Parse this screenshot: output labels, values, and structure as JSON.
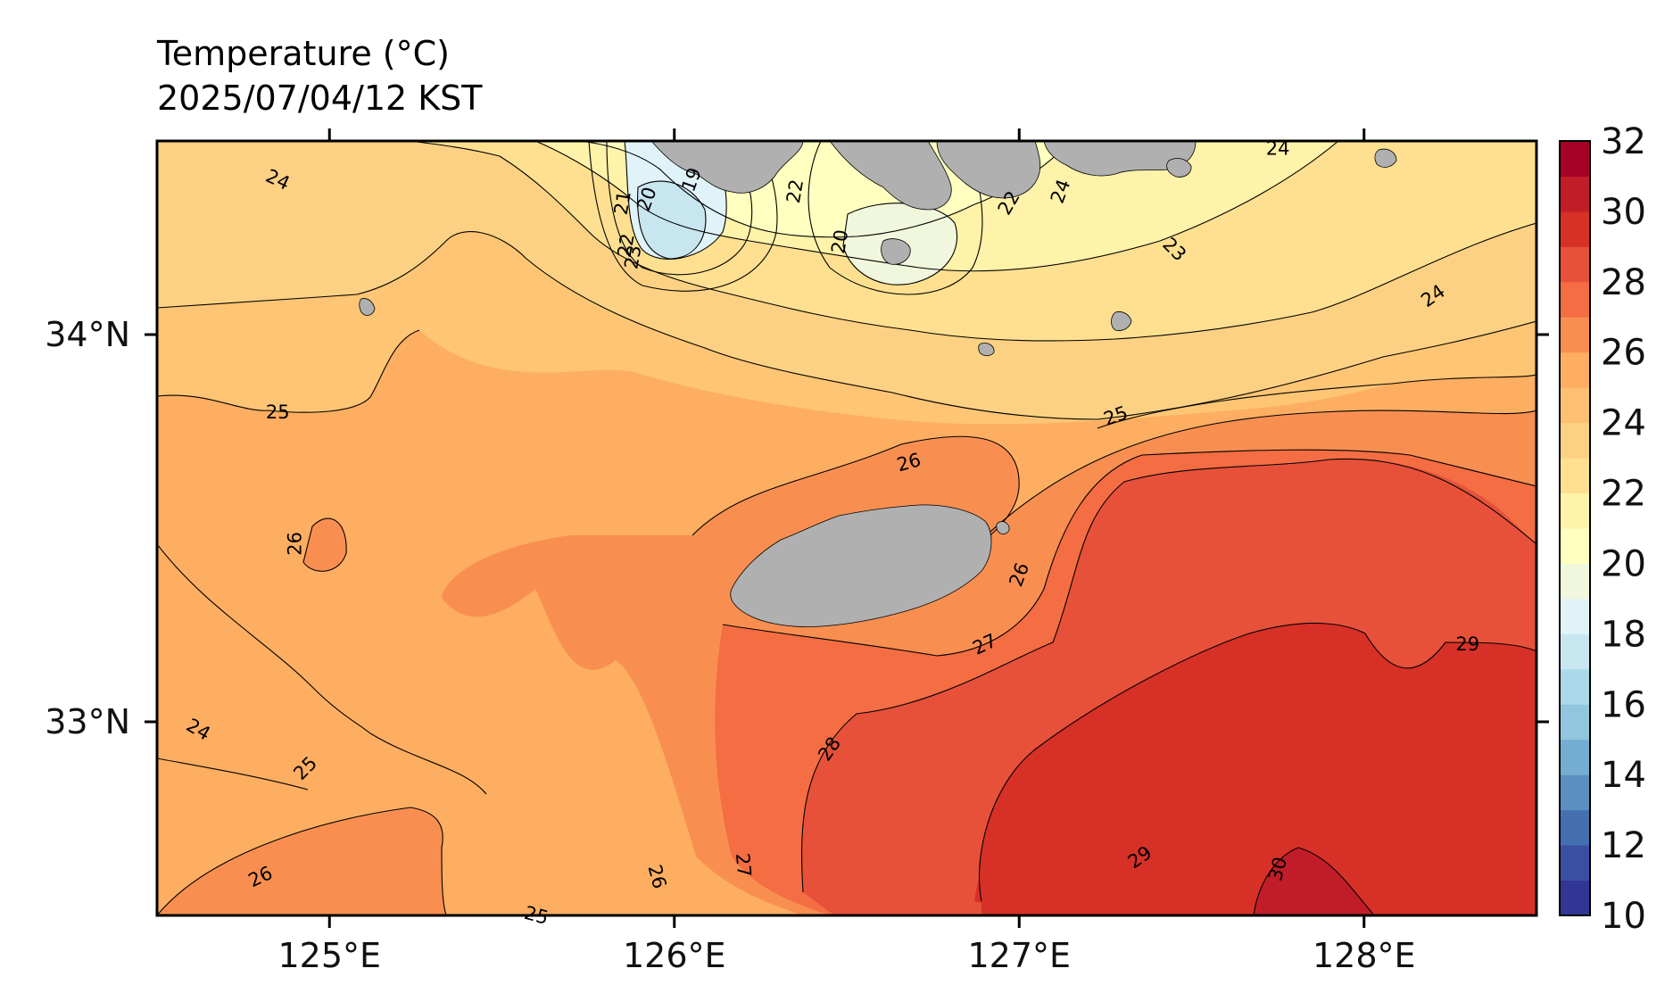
{
  "title": {
    "variable": "Temperature (°C)",
    "time": "2025/07/04/12 KST"
  },
  "colors": {
    "land": "#b0b0b0",
    "background_sea": "#fdc574",
    "colormap": [
      "#313695",
      "#3a4fa2",
      "#4470b1",
      "#5b8fc2",
      "#74add1",
      "#92c5de",
      "#abd9e9",
      "#c8e6f0",
      "#e0f3f8",
      "#f0f7dc",
      "#ffffbf",
      "#fff2a9",
      "#fee090",
      "#fdd183",
      "#fdbf71",
      "#fdae61",
      "#f88f51",
      "#f46d43",
      "#e7513a",
      "#d73027",
      "#c11d29",
      "#a50026"
    ]
  },
  "map": {
    "lon_range": [
      124.5,
      128.5
    ],
    "lat_range": [
      32.5,
      34.5
    ],
    "lon_ticks": [
      125,
      126,
      127,
      128
    ],
    "lat_ticks": [
      33,
      34
    ],
    "lon_tick_labels": [
      "125°E",
      "126°E",
      "127°E",
      "128°E"
    ],
    "lat_tick_labels": [
      "33°N",
      "34°N"
    ]
  },
  "colorbar": {
    "range": [
      10,
      32
    ],
    "tick_labels": [
      "10",
      "12",
      "14",
      "16",
      "18",
      "20",
      "22",
      "24",
      "26",
      "28",
      "30",
      "32"
    ]
  },
  "contour_labels": [
    {
      "text": "24",
      "lon": 124.85,
      "lat": 34.4,
      "angle": 25
    },
    {
      "text": "24",
      "lon": 127.75,
      "lat": 34.48,
      "angle": 0
    },
    {
      "text": "24",
      "lon": 128.2,
      "lat": 34.1,
      "angle": -35
    },
    {
      "text": "24",
      "lon": 124.62,
      "lat": 32.98,
      "angle": 30
    },
    {
      "text": "25",
      "lon": 124.85,
      "lat": 33.8,
      "angle": 0
    },
    {
      "text": "25",
      "lon": 127.28,
      "lat": 33.79,
      "angle": -20
    },
    {
      "text": "25",
      "lon": 124.93,
      "lat": 32.88,
      "angle": -45
    },
    {
      "text": "25",
      "lon": 125.6,
      "lat": 32.5,
      "angle": 15
    },
    {
      "text": "26",
      "lon": 126.68,
      "lat": 33.67,
      "angle": -15
    },
    {
      "text": "26",
      "lon": 124.9,
      "lat": 33.46,
      "angle": -90
    },
    {
      "text": "26",
      "lon": 127.0,
      "lat": 33.38,
      "angle": -70
    },
    {
      "text": "26",
      "lon": 124.8,
      "lat": 32.6,
      "angle": -25
    },
    {
      "text": "26",
      "lon": 125.95,
      "lat": 32.6,
      "angle": 75
    },
    {
      "text": "27",
      "lon": 126.9,
      "lat": 33.2,
      "angle": -25
    },
    {
      "text": "27",
      "lon": 126.2,
      "lat": 32.63,
      "angle": 85
    },
    {
      "text": "28",
      "lon": 126.45,
      "lat": 32.93,
      "angle": -55
    },
    {
      "text": "29",
      "lon": 128.3,
      "lat": 33.2,
      "angle": 0
    },
    {
      "text": "29",
      "lon": 127.35,
      "lat": 32.65,
      "angle": -35
    },
    {
      "text": "30",
      "lon": 127.75,
      "lat": 32.62,
      "angle": -75
    },
    {
      "text": "19",
      "lon": 126.05,
      "lat": 34.4,
      "angle": -70
    },
    {
      "text": "20",
      "lon": 125.92,
      "lat": 34.35,
      "angle": -70
    },
    {
      "text": "21",
      "lon": 125.85,
      "lat": 34.34,
      "angle": -80
    },
    {
      "text": "22",
      "lon": 125.86,
      "lat": 34.23,
      "angle": -80
    },
    {
      "text": "23",
      "lon": 125.88,
      "lat": 34.2,
      "angle": -80
    },
    {
      "text": "22",
      "lon": 126.35,
      "lat": 34.37,
      "angle": -80
    },
    {
      "text": "20",
      "lon": 126.48,
      "lat": 34.24,
      "angle": -80
    },
    {
      "text": "22",
      "lon": 126.97,
      "lat": 34.34,
      "angle": -60
    },
    {
      "text": "24",
      "lon": 127.12,
      "lat": 34.37,
      "angle": -70
    },
    {
      "text": "23",
      "lon": 127.45,
      "lat": 34.22,
      "angle": 45
    }
  ]
}
